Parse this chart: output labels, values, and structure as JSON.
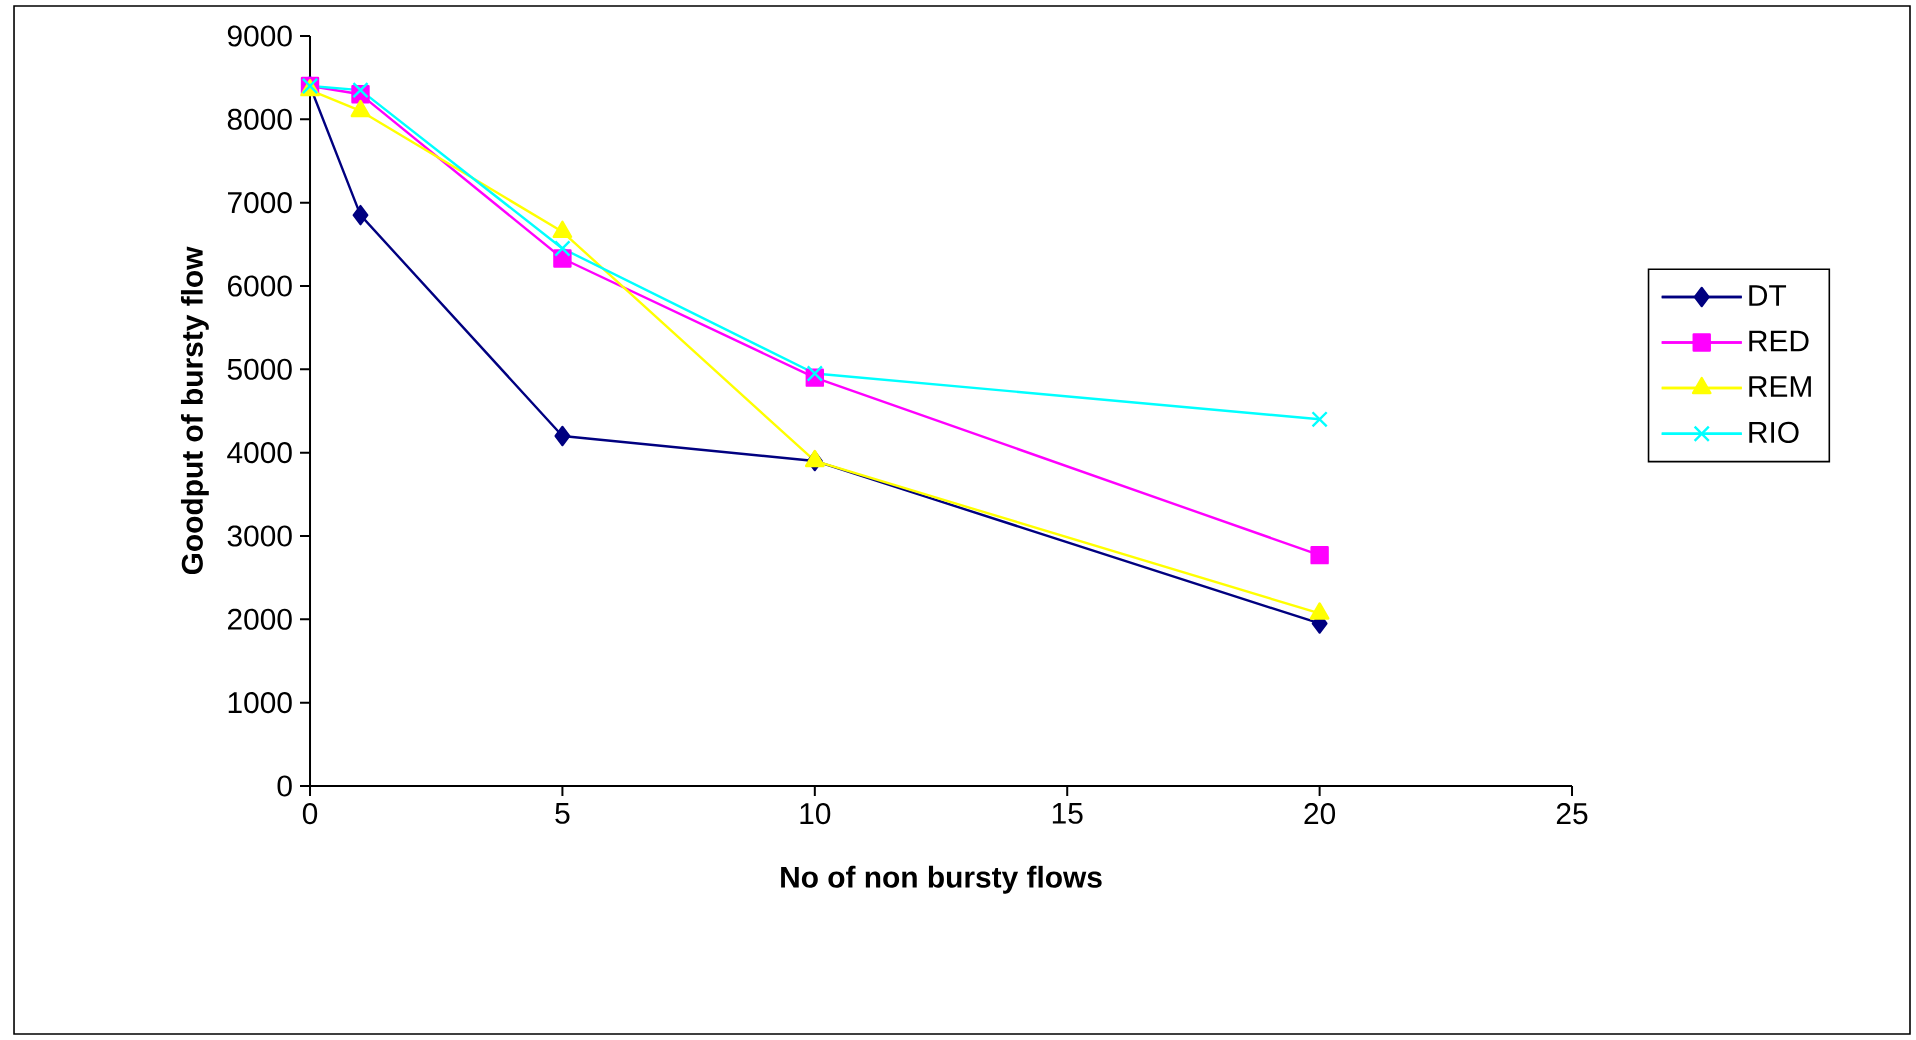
{
  "chart_data": {
    "type": "line",
    "xlabel": "No of non bursty flows",
    "ylabel": "Goodput of bursty flow",
    "x": [
      0,
      1,
      5,
      10,
      20
    ],
    "series": [
      {
        "name": "DT",
        "color": "#000080",
        "marker": "diamond",
        "values": [
          8400,
          6850,
          4200,
          3900,
          1950
        ]
      },
      {
        "name": "RED",
        "color": "#ff00ff",
        "marker": "square",
        "values": [
          8400,
          8300,
          6330,
          4900,
          2770
        ]
      },
      {
        "name": "REM",
        "color": "#ffff00",
        "marker": "triangle",
        "values": [
          8350,
          8100,
          6650,
          3900,
          2070
        ]
      },
      {
        "name": "RIO",
        "color": "#00ffff",
        "marker": "cross",
        "values": [
          8400,
          8350,
          6450,
          4950,
          4400
        ]
      }
    ],
    "xlim": [
      0,
      25
    ],
    "ylim": [
      0,
      9000
    ],
    "xticks": [
      0,
      5,
      10,
      15,
      20,
      25
    ],
    "yticks": [
      0,
      1000,
      2000,
      3000,
      4000,
      5000,
      6000,
      7000,
      8000,
      9000
    ],
    "grid": false,
    "legend": "right",
    "line_style": "solid"
  }
}
